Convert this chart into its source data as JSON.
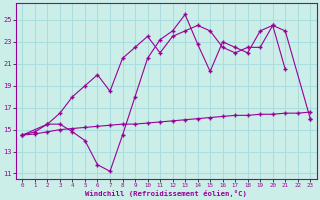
{
  "xlabel": "Windchill (Refroidissement éolien,°C)",
  "background_color": "#cceee8",
  "grid_color": "#aadddd",
  "line_color": "#990099",
  "xlim": [
    -0.5,
    23.5
  ],
  "ylim": [
    10.5,
    26.5
  ],
  "yticks": [
    11,
    13,
    15,
    17,
    19,
    21,
    23,
    25
  ],
  "xticks": [
    0,
    1,
    2,
    3,
    4,
    5,
    6,
    7,
    8,
    9,
    10,
    11,
    12,
    13,
    14,
    15,
    16,
    17,
    18,
    19,
    20,
    21,
    22,
    23
  ],
  "series1_x": [
    0,
    1,
    2,
    3,
    4,
    5,
    6,
    7,
    8,
    9,
    10,
    11,
    12,
    13,
    14,
    15,
    16,
    17,
    18,
    19,
    20,
    21,
    22,
    23
  ],
  "series1_y": [
    14.5,
    14.8,
    15.5,
    15.5,
    14.8,
    14.0,
    11.8,
    11.2,
    14.5,
    18.0,
    21.5,
    23.2,
    24.0,
    25.5,
    22.8,
    20.3,
    23.0,
    22.5,
    22.0,
    24.0,
    24.5,
    20.5,
    null,
    16.0
  ],
  "series2_x": [
    0,
    2,
    3,
    4,
    5,
    6,
    7,
    8,
    9,
    10,
    11,
    12,
    13,
    14,
    15,
    16,
    17,
    18,
    19,
    20,
    21,
    23
  ],
  "series2_y": [
    14.5,
    15.5,
    16.5,
    18.0,
    19.0,
    20.0,
    18.5,
    21.5,
    22.5,
    23.5,
    22.0,
    23.5,
    24.0,
    24.5,
    24.0,
    22.5,
    22.0,
    22.5,
    22.5,
    24.5,
    24.0,
    16.0
  ],
  "series3_x": [
    0,
    1,
    2,
    3,
    4,
    5,
    6,
    7,
    8,
    9,
    10,
    11,
    12,
    13,
    14,
    15,
    16,
    17,
    18,
    19,
    20,
    21,
    22,
    23
  ],
  "series3_y": [
    14.5,
    14.6,
    14.8,
    15.0,
    15.1,
    15.2,
    15.3,
    15.4,
    15.5,
    15.5,
    15.6,
    15.7,
    15.8,
    15.9,
    16.0,
    16.1,
    16.2,
    16.3,
    16.3,
    16.4,
    16.4,
    16.5,
    16.5,
    16.6
  ]
}
